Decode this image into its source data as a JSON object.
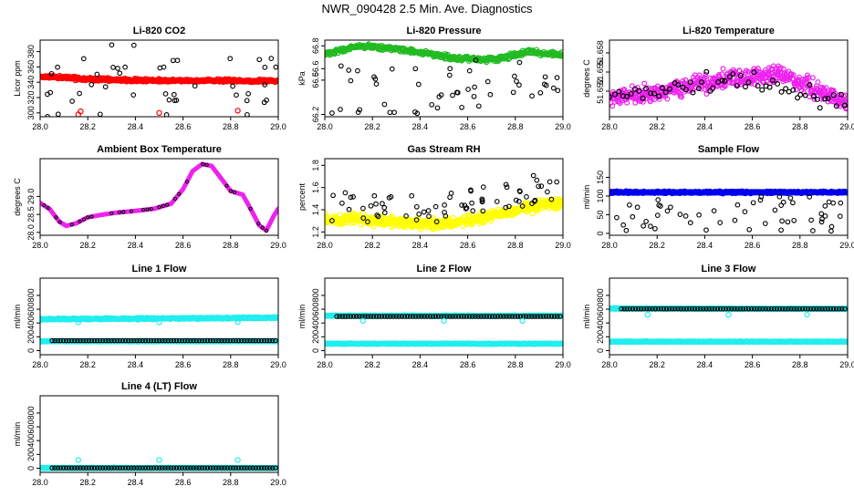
{
  "figure_title": "NWR_090428  2.5 Min. Ave. Diagnostics",
  "colors": {
    "black": "#000000",
    "red": "#ff0000",
    "green": "#22bb22",
    "magenta": "#ee22ee",
    "yellow": "#ffff00",
    "blue": "#0000ee",
    "cyan": "#22eeee"
  },
  "chart_data": [
    {
      "id": "co2",
      "type": "scatter",
      "title": "Li-820 CO2",
      "ylabel": "Licor ppm",
      "xlim": [
        28.0,
        29.0
      ],
      "ylim": [
        295,
        395
      ],
      "x_ticks": [
        "28.0",
        "28.2",
        "28.4",
        "28.6",
        "28.8",
        "29.0"
      ],
      "y_ticks": [
        "300",
        "320",
        "340",
        "360",
        "380"
      ],
      "series": [
        {
          "name": "band",
          "color": "red",
          "gen": "band",
          "base": [
            [
              28.0,
              346
            ],
            [
              28.06,
              347
            ],
            [
              28.2,
              344
            ],
            [
              28.5,
              342
            ],
            [
              29.0,
              342
            ]
          ],
          "noise": 1.5,
          "size": 2.6
        },
        {
          "name": "outliers",
          "color": "black",
          "gen": "scatter",
          "levels": [
            297,
            388,
            315,
            325,
            336,
            350,
            360,
            370
          ],
          "count": 44,
          "seed": 11
        },
        {
          "name": "red-outliers",
          "color": "red",
          "gen": "points",
          "points": [
            [
              28.17,
              302
            ],
            [
              28.5,
              300
            ],
            [
              28.83,
              303
            ],
            [
              28.16,
              298
            ]
          ]
        }
      ]
    },
    {
      "id": "pressure",
      "type": "scatter",
      "title": "Li-820 Pressure",
      "ylabel": "kPa",
      "xlim": [
        28.0,
        29.0
      ],
      "ylim": [
        66.18,
        66.85
      ],
      "x_ticks": [
        "28.0",
        "28.2",
        "28.4",
        "28.6",
        "28.8",
        "29.0"
      ],
      "y_ticks": [
        "66.2",
        "66.5",
        "66.6",
        "66.8"
      ],
      "series": [
        {
          "name": "band",
          "color": "green",
          "gen": "band",
          "base": [
            [
              28.0,
              66.73
            ],
            [
              28.15,
              66.8
            ],
            [
              28.35,
              66.76
            ],
            [
              28.55,
              66.69
            ],
            [
              28.72,
              66.68
            ],
            [
              28.85,
              66.75
            ],
            [
              29.0,
              66.72
            ]
          ],
          "noise": 0.015,
          "size": 2.6
        },
        {
          "name": "outliers",
          "color": "black",
          "gen": "scatter",
          "range": [
            66.2,
            66.68
          ],
          "count": 50,
          "seed": 23
        }
      ]
    },
    {
      "id": "temperature",
      "type": "scatter",
      "title": "Li-820 Temperature",
      "ylabel": "degrees C",
      "xlim": [
        28.0,
        29.0
      ],
      "ylim": [
        51.648,
        51.66
      ],
      "x_ticks": [
        "28.0",
        "28.2",
        "28.4",
        "28.6",
        "28.8",
        "29.0"
      ],
      "y_ticks": [
        "51.652",
        "51.655",
        "51.658"
      ],
      "series": [
        {
          "name": "band",
          "color": "magenta",
          "gen": "band",
          "base": [
            [
              28.0,
              51.651
            ],
            [
              28.15,
              51.6515
            ],
            [
              28.35,
              51.653
            ],
            [
              28.5,
              51.654
            ],
            [
              28.7,
              51.6545
            ],
            [
              28.85,
              51.6525
            ],
            [
              29.0,
              51.65
            ]
          ],
          "noise": 0.0011,
          "size": 2.4,
          "count": 520
        },
        {
          "name": "outliers",
          "color": "black",
          "gen": "band",
          "base": [
            [
              28.0,
              51.6512
            ],
            [
              28.5,
              51.6538
            ],
            [
              29.0,
              51.6505
            ]
          ],
          "noise": 0.0012,
          "size": 2.4,
          "count": 60,
          "seed": 7
        }
      ]
    },
    {
      "id": "ambient",
      "type": "line",
      "title": "Ambient Box Temperature",
      "ylabel": "degrees C",
      "xlim": [
        28.0,
        29.0
      ],
      "ylim": [
        27.92,
        30.05
      ],
      "x_ticks": [
        "28.0",
        "28.2",
        "28.4",
        "28.6",
        "28.8",
        "29.0"
      ],
      "y_ticks": [
        "28.0",
        "28.5",
        "29.0"
      ],
      "series": [
        {
          "name": "temp",
          "color": "magenta",
          "gen": "curve",
          "width": 5,
          "points": [
            [
              28.0,
              28.82
            ],
            [
              28.04,
              28.65
            ],
            [
              28.08,
              28.3
            ],
            [
              28.11,
              28.18
            ],
            [
              28.15,
              28.25
            ],
            [
              28.2,
              28.42
            ],
            [
              28.25,
              28.48
            ],
            [
              28.32,
              28.55
            ],
            [
              28.4,
              28.6
            ],
            [
              28.48,
              28.66
            ],
            [
              28.55,
              28.8
            ],
            [
              28.6,
              29.2
            ],
            [
              28.64,
              29.7
            ],
            [
              28.68,
              29.9
            ],
            [
              28.72,
              29.85
            ],
            [
              28.76,
              29.5
            ],
            [
              28.8,
              29.15
            ],
            [
              28.85,
              29.05
            ],
            [
              28.88,
              28.7
            ],
            [
              28.92,
              28.2
            ],
            [
              28.95,
              28.05
            ],
            [
              28.98,
              28.45
            ],
            [
              29.0,
              28.66
            ]
          ]
        },
        {
          "name": "outline",
          "color": "black",
          "gen": "curve-dots",
          "of": "temp"
        }
      ]
    },
    {
      "id": "rh",
      "type": "scatter",
      "title": "Gas Stream RH",
      "ylabel": "percent",
      "xlim": [
        28.0,
        29.0
      ],
      "ylim": [
        1.17,
        1.86
      ],
      "x_ticks": [
        "28.0",
        "28.2",
        "28.4",
        "28.6",
        "28.8",
        "29.0"
      ],
      "y_ticks": [
        "1.2",
        "1.4",
        "1.6",
        "1.8"
      ],
      "series": [
        {
          "name": "band",
          "color": "yellow",
          "gen": "band",
          "base": [
            [
              28.0,
              1.32
            ],
            [
              28.2,
              1.31
            ],
            [
              28.45,
              1.27
            ],
            [
              28.6,
              1.3
            ],
            [
              28.8,
              1.4
            ],
            [
              29.0,
              1.47
            ]
          ],
          "noise": 0.035,
          "size": 2.8,
          "count": 560
        },
        {
          "name": "outliers",
          "color": "black",
          "gen": "scatter",
          "trend": [
            [
              28.0,
              1.42
            ],
            [
              28.5,
              1.42
            ],
            [
              29.0,
              1.65
            ]
          ],
          "spread": 0.14,
          "count": 70,
          "seed": 31
        }
      ]
    },
    {
      "id": "sample_flow",
      "type": "scatter",
      "title": "Sample Flow",
      "ylabel": "ml/min",
      "xlim": [
        28.0,
        29.0
      ],
      "ylim": [
        -5,
        200
      ],
      "x_ticks": [
        "28.0",
        "28.2",
        "28.4",
        "28.6",
        "28.8",
        "29.0"
      ],
      "y_ticks": [
        "0",
        "50",
        "100",
        "150"
      ],
      "series": [
        {
          "name": "band",
          "color": "blue",
          "gen": "band",
          "base": [
            [
              28.0,
              110
            ],
            [
              29.0,
              110
            ]
          ],
          "noise": 2.0,
          "size": 2.6
        },
        {
          "name": "outliers",
          "color": "black",
          "gen": "scatter",
          "range": [
            5,
            100
          ],
          "count": 55,
          "seed": 41
        }
      ]
    },
    {
      "id": "line1",
      "type": "scatter",
      "title": "Line 1 Flow",
      "ylabel": "ml/min",
      "xlim": [
        28.0,
        29.0
      ],
      "ylim": [
        -60,
        1050
      ],
      "x_ticks": [
        "28.0",
        "28.2",
        "28.4",
        "28.6",
        "28.8",
        "29.0"
      ],
      "y_ticks": [
        "0",
        "200",
        "400",
        "600",
        "800"
      ],
      "series": [
        {
          "name": "high",
          "color": "cyan",
          "gen": "band",
          "base": [
            [
              28.0,
              455
            ],
            [
              29.0,
              475
            ]
          ],
          "noise": 9,
          "size": 2.6
        },
        {
          "name": "low",
          "color": "cyan",
          "gen": "band",
          "base": [
            [
              28.0,
              135
            ],
            [
              29.0,
              135
            ]
          ],
          "noise": 4,
          "size": 2.6
        },
        {
          "name": "dots",
          "color": "black",
          "gen": "dotline",
          "y": 145,
          "count": 80
        },
        {
          "name": "spikes",
          "color": "cyan",
          "gen": "points",
          "points": [
            [
              28.16,
              410
            ],
            [
              28.5,
              410
            ],
            [
              28.83,
              415
            ]
          ]
        }
      ]
    },
    {
      "id": "line2",
      "type": "scatter",
      "title": "Line 2 Flow",
      "ylabel": "ml/min",
      "xlim": [
        28.0,
        29.0
      ],
      "ylim": [
        -60,
        1050
      ],
      "x_ticks": [
        "28.0",
        "28.2",
        "28.4",
        "28.6",
        "28.8",
        "29.0"
      ],
      "y_ticks": [
        "0",
        "200",
        "400",
        "600",
        "800"
      ],
      "series": [
        {
          "name": "high",
          "color": "cyan",
          "gen": "band",
          "base": [
            [
              28.0,
              505
            ],
            [
              29.0,
              505
            ]
          ],
          "noise": 5,
          "size": 2.6
        },
        {
          "name": "low",
          "color": "cyan",
          "gen": "band",
          "base": [
            [
              28.0,
              100
            ],
            [
              29.0,
              100
            ]
          ],
          "noise": 4,
          "size": 2.6
        },
        {
          "name": "dots",
          "color": "black",
          "gen": "dotline",
          "y": 495,
          "count": 80
        },
        {
          "name": "spikes",
          "color": "cyan",
          "gen": "points",
          "points": [
            [
              28.16,
              430
            ],
            [
              28.5,
              430
            ],
            [
              28.83,
              430
            ]
          ]
        }
      ]
    },
    {
      "id": "line3",
      "type": "scatter",
      "title": "Line 3 Flow",
      "ylabel": "ml/min",
      "xlim": [
        28.0,
        29.0
      ],
      "ylim": [
        -60,
        1050
      ],
      "x_ticks": [
        "28.0",
        "28.2",
        "28.4",
        "28.6",
        "28.8",
        "29.0"
      ],
      "y_ticks": [
        "0",
        "200",
        "400",
        "600",
        "800"
      ],
      "series": [
        {
          "name": "high",
          "color": "cyan",
          "gen": "band",
          "base": [
            [
              28.0,
              610
            ],
            [
              29.0,
              605
            ]
          ],
          "noise": 5,
          "size": 2.6
        },
        {
          "name": "low",
          "color": "cyan",
          "gen": "band",
          "base": [
            [
              28.0,
              130
            ],
            [
              29.0,
              130
            ]
          ],
          "noise": 4,
          "size": 2.6
        },
        {
          "name": "dots",
          "color": "black",
          "gen": "dotline",
          "y": 605,
          "count": 80
        },
        {
          "name": "spikes",
          "color": "cyan",
          "gen": "points",
          "points": [
            [
              28.16,
              520
            ],
            [
              28.5,
              520
            ],
            [
              28.83,
              520
            ]
          ]
        }
      ]
    },
    {
      "id": "line4",
      "type": "scatter",
      "title": "Line 4 (LT) Flow",
      "ylabel": "ml/min",
      "xlim": [
        28.0,
        29.0
      ],
      "ylim": [
        -60,
        1050
      ],
      "x_ticks": [
        "28.0",
        "28.2",
        "28.4",
        "28.6",
        "28.8",
        "29.0"
      ],
      "y_ticks": [
        "0",
        "200",
        "400",
        "600",
        "800"
      ],
      "series": [
        {
          "name": "low",
          "color": "cyan",
          "gen": "band",
          "base": [
            [
              28.0,
              5
            ],
            [
              29.0,
              5
            ]
          ],
          "noise": 3,
          "size": 2.6
        },
        {
          "name": "dots",
          "color": "black",
          "gen": "dotline",
          "y": 5,
          "count": 80
        },
        {
          "name": "spikes",
          "color": "cyan",
          "gen": "points",
          "points": [
            [
              28.16,
              120
            ],
            [
              28.5,
              120
            ],
            [
              28.83,
              120
            ]
          ]
        }
      ]
    }
  ]
}
